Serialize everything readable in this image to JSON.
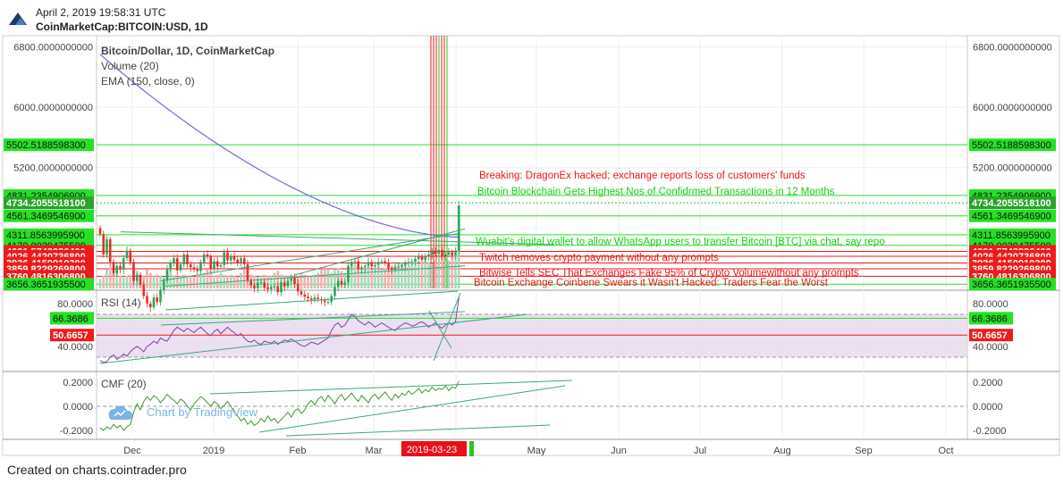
{
  "header": {
    "timestamp": "April 2, 2019 19:58:31 UTC",
    "symbol": "CoinMarketCap:BITCOIN:USD, 1D"
  },
  "footer": {
    "text": "Created on charts.cointrader.pro"
  },
  "watermark": {
    "text": "Chart by TradingView"
  },
  "chart_data": {
    "type": "candlestick",
    "title": "Bitcoin/Dollar, 1D, CoinMarketCap",
    "indicators_text": [
      "Volume (20)",
      "EMA (150, close, 0)"
    ],
    "x_ticks": [
      "Dec",
      "2019",
      "Feb",
      "Mar",
      "Apr",
      "May",
      "Jun",
      "Jul",
      "Aug",
      "Sep",
      "Oct"
    ],
    "crosshair_date": "2019-03-23",
    "price_axis": {
      "ylim": [
        3600,
        6900
      ],
      "ticks": [
        "6800.0000000000",
        "6000.0000000000",
        "5200.0000000000"
      ]
    },
    "price_levels": [
      {
        "label": "5502.5188598300",
        "value": 5502.52,
        "color": "#26e026"
      },
      {
        "label": "4831.2354906900",
        "value": 4831.24,
        "color": "#26e026"
      },
      {
        "label": "4734.2055518100",
        "value": 4734.21,
        "color": "#26c826"
      },
      {
        "label": "4561.3469546900",
        "value": 4561.35,
        "color": "#26e026"
      },
      {
        "label": "4311.8563995900",
        "value": 4311.86,
        "color": "#26e026"
      },
      {
        "label": "4170.0029475500",
        "value": 4170.0,
        "color": "#26e026"
      },
      {
        "label": "4091.5743936400",
        "value": 4091.57,
        "color": "#ef1a1a"
      },
      {
        "label": "4026.4420736800",
        "value": 4026.44,
        "color": "#ef1a1a"
      },
      {
        "label": "3936.4150910300",
        "value": 3936.42,
        "color": "#ef1a1a"
      },
      {
        "label": "3859.8229269800",
        "value": 3859.82,
        "color": "#ef1a1a"
      },
      {
        "label": "3760.4816306800",
        "value": 3760.48,
        "color": "#ef1a1a"
      },
      {
        "label": "3656.3651935500",
        "value": 3656.37,
        "color": "#26e026"
      }
    ],
    "annotations": [
      {
        "text": "Breaking: DragonEx hacked; exchange reports loss of customers' funds",
        "color": "#e81818"
      },
      {
        "text": "Bitcoin Blockchain Gets Highest Nos of Confidrmed Transactions in 12 Months",
        "color": "#18d018"
      },
      {
        "text": "Wuabit's digital wallet to allow WhatsApp users to transfer Bitcoin [BTC] via chat, say repo",
        "color": "#18d018"
      },
      {
        "text": "Twitch removes crypto payment without any prompts",
        "color": "#e81818"
      },
      {
        "text": "Bitwise Tells SEC That Exchanges Fake 95% of Crypto Volumewithout any prompts",
        "color": "#e81818"
      },
      {
        "text": "Bitcoin Exchange Coinbene Swears it Wasn't Hacked: Traders Fear the Worst",
        "color": "#e81818"
      }
    ],
    "candles_close": [
      4320,
      4050,
      4250,
      3950,
      3800,
      3900,
      3850,
      4000,
      4100,
      3950,
      3700,
      3780,
      3650,
      3500,
      3400,
      3350,
      3480,
      3420,
      3580,
      3700,
      3860,
      3940,
      4000,
      3840,
      3920,
      4050,
      3920,
      3880,
      3850,
      3830,
      3950,
      4050,
      4020,
      3860,
      3960,
      3890,
      3910,
      4080,
      3970,
      4030,
      3980,
      3940,
      4000,
      3920,
      3700,
      3640,
      3600,
      3680,
      3680,
      3610,
      3590,
      3620,
      3630,
      3550,
      3680,
      3630,
      3700,
      3750,
      3660,
      3560,
      3520,
      3490,
      3470,
      3450,
      3480,
      3460,
      3440,
      3420,
      3420,
      3500,
      3620,
      3700,
      3650,
      3680,
      3900,
      3950,
      3960,
      3860,
      3880,
      3900,
      3950,
      3890,
      3910,
      3950,
      3960,
      3940,
      3870,
      3850,
      3880,
      3890,
      3910,
      3930,
      3950,
      3960,
      3990,
      4020,
      3980,
      4020,
      4050,
      4100,
      4060,
      4110,
      4030,
      4050,
      4080,
      4040,
      4100,
      4700
    ],
    "ema_150": {
      "start": 6700,
      "end": 4280
    },
    "volume": {
      "ylim": [
        0,
        1
      ],
      "relative": [
        0.15,
        0.2,
        0.3,
        0.35,
        0.3,
        0.25,
        0.2,
        0.18,
        0.2,
        0.22,
        0.3,
        0.25,
        0.22,
        0.2,
        0.3,
        0.25,
        0.2,
        0.22,
        0.2,
        0.18,
        0.25,
        0.3,
        0.2,
        0.18,
        0.2,
        0.22,
        0.2,
        0.2,
        0.18,
        0.2,
        0.22,
        0.25,
        0.3,
        0.28,
        0.2,
        0.22,
        0.25,
        0.22,
        0.2,
        0.22,
        0.2,
        0.18,
        0.25,
        0.3,
        0.2,
        0.22,
        0.2,
        0.18,
        0.2,
        0.22,
        0.2,
        0.2,
        0.25,
        0.28,
        0.22,
        0.2,
        0.2,
        0.22,
        0.2,
        0.2,
        0.25,
        0.22,
        0.2,
        0.2,
        0.22,
        0.25,
        0.3,
        0.35,
        0.3,
        0.25,
        0.3,
        0.32,
        0.28,
        0.25,
        0.35,
        0.4,
        0.38,
        0.35,
        0.3,
        0.32,
        0.35,
        0.3,
        0.32,
        0.35,
        0.3,
        0.32,
        0.3,
        0.35,
        0.38,
        0.4,
        0.42,
        0.4,
        0.38,
        0.42,
        0.45,
        0.4,
        0.42,
        0.45,
        0.42,
        0.4,
        0.45,
        0.42,
        0.45,
        0.48,
        0.45,
        0.5,
        0.55,
        0.9
      ]
    },
    "rsi": {
      "title": "RSI (14)",
      "ylim": [
        20,
        90
      ],
      "ticks": [
        "80.0000",
        "40.0000"
      ],
      "levels": [
        {
          "label": "66.3686",
          "value": 66.37,
          "color": "#26e026"
        },
        {
          "label": "50.6657",
          "value": 50.67,
          "color": "#ef1a1a"
        }
      ],
      "band": [
        30,
        70
      ],
      "values": [
        27,
        25,
        26,
        30,
        32,
        28,
        30,
        33,
        31,
        35,
        38,
        40,
        38,
        35,
        40,
        42,
        45,
        43,
        48,
        46,
        45,
        50,
        55,
        58,
        56,
        54,
        57,
        55,
        53,
        56,
        58,
        55,
        52,
        50,
        54,
        56,
        52,
        55,
        58,
        55,
        53,
        50,
        52,
        48,
        45,
        44,
        46,
        43,
        42,
        45,
        44,
        43,
        45,
        42,
        44,
        46,
        45,
        47,
        45,
        43,
        41,
        40,
        42,
        44,
        43,
        42,
        44,
        46,
        48,
        55,
        60,
        62,
        58,
        60,
        65,
        70,
        68,
        64,
        62,
        60,
        63,
        61,
        58,
        60,
        62,
        60,
        58,
        56,
        55,
        58,
        60,
        62,
        61,
        59,
        60,
        62,
        63,
        61,
        58,
        60,
        62,
        59,
        57,
        60,
        62,
        60,
        63,
        86
      ]
    },
    "cmf": {
      "title": "CMF (20)",
      "ylim": [
        -0.26,
        0.26
      ],
      "ticks": [
        "0.2000",
        "0.0000",
        "-0.2000"
      ],
      "values": [
        -0.18,
        -0.2,
        -0.17,
        -0.19,
        -0.15,
        -0.18,
        -0.16,
        -0.2,
        -0.17,
        -0.15,
        -0.05,
        0.02,
        -0.03,
        0.04,
        0.08,
        0.05,
        0.09,
        0.07,
        0.03,
        0.06,
        0.1,
        0.07,
        0.05,
        0.02,
        0.06,
        0.04,
        0.0,
        -0.03,
        0.02,
        0.05,
        0.08,
        0.06,
        0.03,
        0.0,
        0.04,
        0.02,
        -0.02,
        0.01,
        0.04,
        0.0,
        -0.05,
        -0.08,
        -0.12,
        -0.1,
        -0.15,
        -0.12,
        -0.16,
        -0.14,
        -0.1,
        -0.13,
        -0.08,
        -0.12,
        -0.1,
        -0.14,
        -0.11,
        -0.08,
        -0.05,
        -0.09,
        -0.04,
        -0.02,
        -0.06,
        -0.03,
        0.02,
        0.05,
        0.01,
        0.06,
        0.08,
        0.04,
        0.09,
        0.06,
        0.02,
        0.07,
        0.1,
        0.05,
        0.08,
        0.11,
        0.07,
        0.04,
        0.09,
        0.06,
        0.03,
        0.08,
        0.1,
        0.06,
        0.09,
        0.12,
        0.08,
        0.05,
        0.1,
        0.07,
        0.11,
        0.09,
        0.13,
        0.1,
        0.12,
        0.15,
        0.11,
        0.14,
        0.12,
        0.16,
        0.13,
        0.15,
        0.14,
        0.17,
        0.13,
        0.16,
        0.15,
        0.21
      ]
    }
  }
}
